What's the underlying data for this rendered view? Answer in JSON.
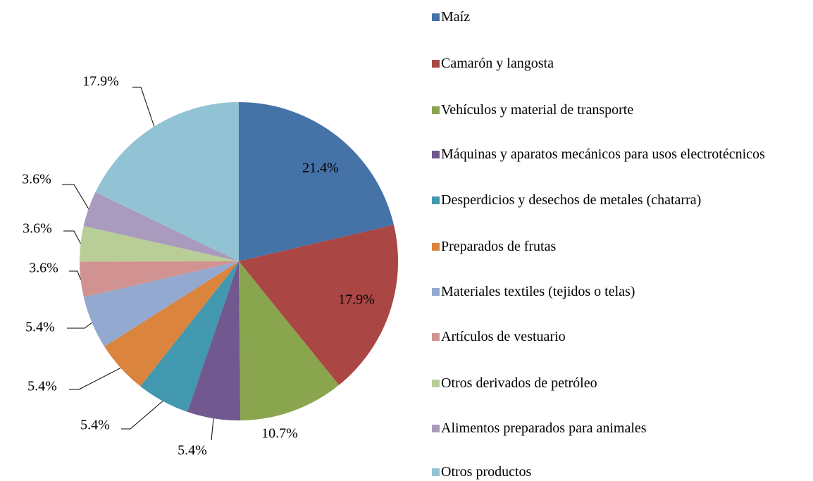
{
  "chart_data": {
    "type": "pie",
    "categories": [
      "Maíz",
      "Camarón y langosta",
      "Vehículos y material de transporte",
      "Máquinas y aparatos mecánicos para usos electrotécnicos",
      "Desperdicios y desechos de metales (chatarra)",
      "Preparados de frutas",
      "Materiales textiles (tejidos o telas)",
      "Artículos de vestuario",
      "Otros derivados de petróleo",
      "Alimentos preparados para animales",
      "Otros productos"
    ],
    "values": [
      21.4,
      17.9,
      10.7,
      5.4,
      5.4,
      5.4,
      5.4,
      3.6,
      3.6,
      3.6,
      17.9
    ],
    "value_labels": [
      "21.4%",
      "17.9%",
      "10.7%",
      "5.4%",
      "5.4%",
      "5.4%",
      "5.4%",
      "3.6%",
      "3.6%",
      "3.6%",
      "17.9%"
    ],
    "colors": [
      "#4572A7",
      "#AA4643",
      "#89A54E",
      "#71588F",
      "#4198AF",
      "#DB843D",
      "#93A9CF",
      "#D19392",
      "#B9CD96",
      "#A99BBD",
      "#92C3D4"
    ],
    "legend": "right"
  }
}
